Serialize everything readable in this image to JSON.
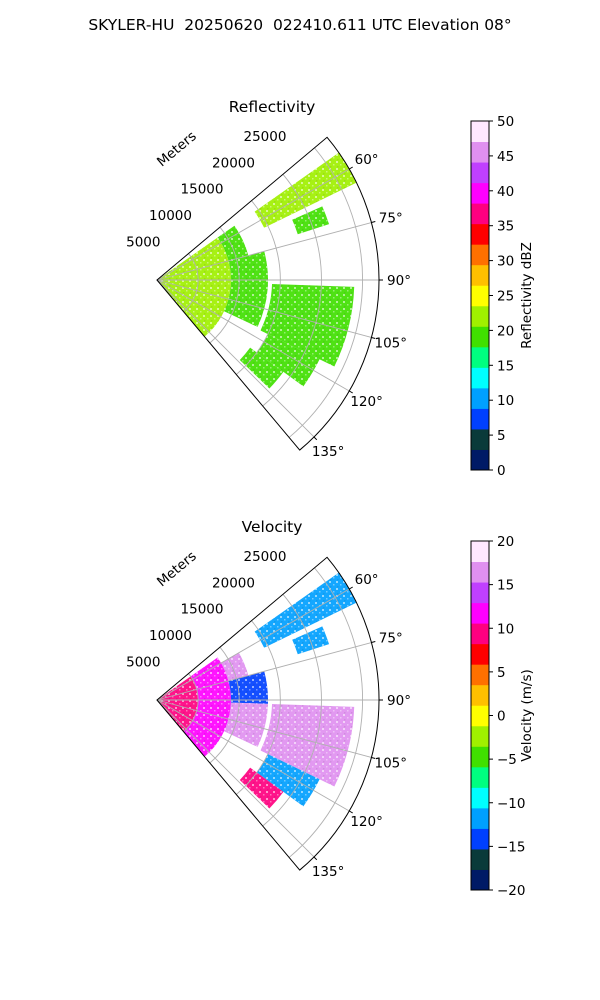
{
  "figure": {
    "suptitle": "SKYLER-HU  20250620  022410.611 UTC Elevation 08°"
  },
  "chart_data": [
    {
      "type": "heatmap",
      "projection": "polar-sector",
      "title": "Reflectivity",
      "range_label": "Meters",
      "range_ticks": [
        5000,
        10000,
        15000,
        20000,
        25000
      ],
      "range_max": 27000,
      "azimuth_ticks": [
        "60°",
        "75°",
        "90°",
        "105°",
        "120°",
        "135°"
      ],
      "azimuth_tick_values": [
        60,
        75,
        90,
        105,
        120,
        135
      ],
      "azimuth_range": [
        50,
        140
      ],
      "grid": true,
      "colorbar": {
        "label": "Reflectivity dBZ",
        "min": 0,
        "max": 50,
        "ticks": [
          "0",
          "5",
          "10",
          "15",
          "20",
          "25",
          "30",
          "35",
          "40",
          "45",
          "50"
        ],
        "colors": [
          "#001a66",
          "#0a3a3a",
          "#0040ff",
          "#00a0ff",
          "#00ffff",
          "#00ff80",
          "#40e000",
          "#a0f000",
          "#ffff00",
          "#ffc000",
          "#ff7000",
          "#ff0000",
          "#ff0080",
          "#ff00ff",
          "#c040ff",
          "#e090f0",
          "#ffe8ff"
        ]
      },
      "echo_regions": [
        {
          "az": [
            55,
            140
          ],
          "range": [
            0,
            9000
          ],
          "value": 22
        },
        {
          "az": [
            55,
            75
          ],
          "range": [
            9000,
            11500
          ],
          "value": 20
        },
        {
          "az": [
            75,
            115
          ],
          "range": [
            9000,
            13500
          ],
          "value": 18
        },
        {
          "az": [
            55,
            64
          ],
          "range": [
            14500,
            27000
          ],
          "value": 22
        },
        {
          "az": [
            66,
            72
          ],
          "range": [
            18000,
            22000
          ],
          "value": 20
        },
        {
          "az": [
            92,
            116
          ],
          "range": [
            14000,
            24000
          ],
          "value": 20
        },
        {
          "az": [
            116,
            126
          ],
          "range": [
            15000,
            22000
          ],
          "value": 20
        },
        {
          "az": [
            126,
            134
          ],
          "range": [
            14000,
            19000
          ],
          "value": 20
        }
      ]
    },
    {
      "type": "heatmap",
      "projection": "polar-sector",
      "title": "Velocity",
      "range_label": "Meters",
      "range_ticks": [
        5000,
        10000,
        15000,
        20000,
        25000
      ],
      "range_max": 27000,
      "azimuth_ticks": [
        "60°",
        "75°",
        "90°",
        "105°",
        "120°",
        "135°"
      ],
      "azimuth_tick_values": [
        60,
        75,
        90,
        105,
        120,
        135
      ],
      "azimuth_range": [
        50,
        140
      ],
      "grid": true,
      "colorbar": {
        "label": "Velocity (m/s)",
        "min": -20,
        "max": 20,
        "ticks": [
          "−20",
          "−15",
          "−10",
          "−5",
          "0",
          "5",
          "10",
          "15",
          "20"
        ],
        "colors": [
          "#001a66",
          "#0a3a3a",
          "#0040ff",
          "#00a0ff",
          "#00ffff",
          "#00ff80",
          "#40e000",
          "#a0f000",
          "#ffff00",
          "#ffc000",
          "#ff7000",
          "#ff0000",
          "#ff0080",
          "#ff00ff",
          "#c040ff",
          "#e090f0",
          "#ffe8ff"
        ]
      },
      "echo_regions": [
        {
          "az": [
            55,
            140
          ],
          "range": [
            0,
            5000
          ],
          "value": 9
        },
        {
          "az": [
            55,
            140
          ],
          "range": [
            5000,
            9000
          ],
          "value": 12
        },
        {
          "az": [
            60,
            75
          ],
          "range": [
            9000,
            11500
          ],
          "value": 16
        },
        {
          "az": [
            75,
            92
          ],
          "range": [
            9000,
            13500
          ],
          "value": -14
        },
        {
          "az": [
            92,
            115
          ],
          "range": [
            9000,
            13500
          ],
          "value": 16
        },
        {
          "az": [
            55,
            64
          ],
          "range": [
            14500,
            27000
          ],
          "value": -11
        },
        {
          "az": [
            66,
            72
          ],
          "range": [
            18000,
            22000
          ],
          "value": -11
        },
        {
          "az": [
            92,
            116
          ],
          "range": [
            14000,
            24000
          ],
          "value": 16
        },
        {
          "az": [
            116,
            126
          ],
          "range": [
            15000,
            22000
          ],
          "value": -12
        },
        {
          "az": [
            126,
            134
          ],
          "range": [
            14000,
            19000
          ],
          "value": 10
        }
      ]
    }
  ]
}
